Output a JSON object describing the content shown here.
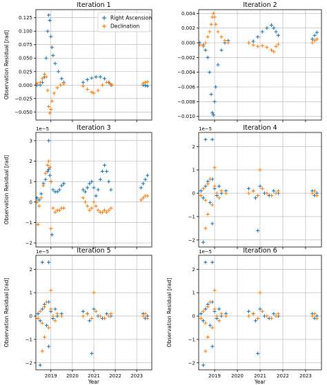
{
  "figure": {
    "colors": {
      "ra": "#1f77b4",
      "dec": "#ff7f0e",
      "grid": "#b0b0b0"
    },
    "legend": {
      "entries": [
        "Right Ascension",
        "Declination"
      ],
      "placement": "upper-right of panel 1"
    }
  },
  "chart_data": [
    {
      "type": "scatter",
      "title": "Iteration 1",
      "xlabel": "",
      "ylabel": "Observation Residual [rad]",
      "offset_text": "",
      "xlim": [
        2018.3,
        2023.7
      ],
      "ylim": [
        -0.065,
        0.14
      ],
      "yticks": [
        -0.05,
        -0.025,
        0.0,
        0.025,
        0.05,
        0.075,
        0.1,
        0.125
      ],
      "ytick_labels": [
        "−0.050",
        "−0.025",
        "0.000",
        "0.025",
        "0.050",
        "0.075",
        "0.100",
        "0.125"
      ],
      "xticks": [
        2019,
        2020,
        2021,
        2022,
        2023
      ],
      "xtick_labels": [],
      "grid": true,
      "series": [
        {
          "name": "Right Ascension",
          "x": [
            2018.35,
            2018.5,
            2018.6,
            2018.7,
            2018.78,
            2018.85,
            2018.9,
            2018.95,
            2019.0,
            2019.05,
            2019.1,
            2019.2,
            2019.35,
            2019.5,
            2019.6,
            2020.5,
            2020.7,
            2020.9,
            2021.1,
            2021.3,
            2021.5,
            2021.7,
            2021.8,
            2023.3,
            2023.4,
            2023.5
          ],
          "y": [
            0.0,
            0.0,
            0.005,
            0.015,
            0.05,
            0.1,
            0.13,
            0.12,
            0.09,
            0.07,
            0.055,
            0.04,
            0.025,
            0.012,
            0.005,
            0.005,
            0.01,
            0.013,
            0.015,
            0.015,
            0.012,
            0.005,
            0.0,
            0.0,
            -0.001,
            -0.002
          ]
        },
        {
          "name": "Declination",
          "x": [
            2018.35,
            2018.5,
            2018.6,
            2018.7,
            2018.78,
            2018.85,
            2018.9,
            2018.95,
            2019.0,
            2019.05,
            2019.15,
            2019.3,
            2019.45,
            2019.6,
            2020.5,
            2020.7,
            2020.9,
            2021.0,
            2021.2,
            2021.4,
            2021.6,
            2021.75,
            2021.85,
            2023.3,
            2023.4,
            2023.5
          ],
          "y": [
            0.003,
            0.005,
            0.012,
            0.02,
            0.015,
            -0.01,
            -0.04,
            -0.052,
            -0.045,
            -0.03,
            -0.015,
            -0.005,
            0.0,
            0.002,
            -0.002,
            -0.008,
            -0.013,
            -0.015,
            -0.01,
            0.0,
            0.005,
            0.003,
            0.0,
            0.003,
            0.005,
            0.006
          ]
        }
      ]
    },
    {
      "type": "scatter",
      "title": "Iteration 2",
      "xlabel": "",
      "ylabel": "",
      "offset_text": "",
      "xlim": [
        2018.3,
        2023.7
      ],
      "ylim": [
        -0.0105,
        0.0045
      ],
      "yticks": [
        -0.01,
        -0.008,
        -0.006,
        -0.004,
        -0.002,
        0.0,
        0.002,
        0.004
      ],
      "ytick_labels": [
        "−0.010",
        "−0.008",
        "−0.006",
        "−0.004",
        "−0.002",
        "0.000",
        "0.002",
        "0.004"
      ],
      "xticks": [
        2019,
        2020,
        2021,
        2022,
        2023
      ],
      "xtick_labels": [],
      "grid": true,
      "series": [
        {
          "name": "Right Ascension",
          "x": [
            2018.35,
            2018.5,
            2018.6,
            2018.7,
            2018.78,
            2018.85,
            2018.9,
            2018.95,
            2019.0,
            2019.05,
            2019.15,
            2019.3,
            2019.45,
            2019.6,
            2020.5,
            2020.7,
            2020.9,
            2021.1,
            2021.3,
            2021.5,
            2021.6,
            2021.7,
            2021.8,
            2023.3,
            2023.4,
            2023.5
          ],
          "y": [
            0.0,
            -0.0003,
            -0.001,
            -0.002,
            -0.004,
            -0.007,
            -0.0095,
            -0.0098,
            -0.008,
            -0.006,
            -0.003,
            -0.001,
            0.0,
            0.0003,
            0.0,
            0.0002,
            0.0008,
            0.0015,
            0.002,
            0.0024,
            0.002,
            0.0015,
            0.001,
            0.0005,
            0.001,
            0.0014
          ]
        },
        {
          "name": "Declination",
          "x": [
            2018.35,
            2018.5,
            2018.6,
            2018.7,
            2018.78,
            2018.85,
            2018.9,
            2018.95,
            2019.0,
            2019.05,
            2019.15,
            2019.3,
            2019.45,
            2019.6,
            2020.5,
            2020.7,
            2020.9,
            2021.1,
            2021.3,
            2021.5,
            2021.6,
            2021.7,
            2021.8,
            2023.3,
            2023.4,
            2023.5
          ],
          "y": [
            -0.0003,
            -0.0005,
            0.0,
            0.0008,
            0.0015,
            0.0025,
            0.0035,
            0.004,
            0.0035,
            0.0025,
            0.0015,
            0.0008,
            0.0003,
            0.0,
            0.0,
            -0.0003,
            -0.0005,
            -0.0004,
            -0.0006,
            -0.001,
            -0.0012,
            -0.0005,
            -0.0002,
            0.0,
            0.0003,
            0.0005
          ]
        }
      ]
    },
    {
      "type": "scatter",
      "title": "Iteration 3",
      "xlabel": "",
      "ylabel": "Observation Residual [rad]",
      "offset_text": "1e−5",
      "xlim": [
        2018.3,
        2023.7
      ],
      "ylim": [
        -2.2,
        3.4
      ],
      "yticks": [
        -2,
        -1,
        0,
        1,
        2,
        3
      ],
      "ytick_labels": [
        "−2",
        "−1",
        "0",
        "1",
        "2",
        "3"
      ],
      "xticks": [
        2019,
        2020,
        2021,
        2022,
        2023
      ],
      "xtick_labels": [],
      "grid": true,
      "series": [
        {
          "name": "Right Ascension",
          "x": [
            2018.35,
            2018.45,
            2018.55,
            2018.65,
            2018.75,
            2018.85,
            2018.9,
            2018.95,
            2019.0,
            2019.1,
            2019.2,
            2019.3,
            2019.4,
            2019.5,
            2019.6,
            2020.5,
            2020.6,
            2020.7,
            2020.8,
            2020.9,
            2021.0,
            2021.1,
            2021.2,
            2021.3,
            2021.4,
            2021.5,
            2021.6,
            2021.7,
            2021.8,
            2018.9,
            2019.05,
            2023.2,
            2023.3,
            2023.4,
            2023.5
          ],
          "y": [
            0.2,
            0.1,
            0.4,
            0.9,
            1.1,
            1.5,
            1.6,
            1.3,
            1.0,
            0.6,
            0.5,
            0.5,
            0.6,
            0.8,
            0.9,
            0.6,
            0.5,
            0.7,
            0.9,
            1.0,
            0.7,
            0.3,
            0.6,
            1.1,
            1.5,
            1.8,
            1.5,
            1.0,
            0.6,
            3.0,
            -1.6,
            0.7,
            0.9,
            1.1,
            1.3
          ]
        },
        {
          "name": "Declination",
          "x": [
            2018.35,
            2018.45,
            2018.55,
            2018.65,
            2018.75,
            2018.85,
            2018.9,
            2018.95,
            2019.0,
            2019.1,
            2019.2,
            2019.3,
            2019.4,
            2019.5,
            2019.6,
            2020.5,
            2020.6,
            2020.7,
            2020.8,
            2020.9,
            2021.0,
            2021.1,
            2021.2,
            2021.3,
            2021.4,
            2021.5,
            2021.6,
            2021.7,
            2021.8,
            2018.4,
            2019.0,
            2023.2,
            2023.3,
            2023.4,
            2023.5
          ],
          "y": [
            0.0,
            -0.2,
            0.2,
            0.8,
            1.4,
            1.8,
            2.0,
            1.7,
            1.0,
            -0.3,
            -0.5,
            -0.4,
            -0.4,
            -0.3,
            -0.3,
            0.2,
            0.0,
            -0.2,
            -0.4,
            -0.3,
            0.0,
            -0.2,
            -0.4,
            -0.5,
            -0.5,
            -0.4,
            -0.5,
            -0.4,
            -0.3,
            -1.1,
            -1.3,
            0.1,
            0.2,
            0.3,
            0.3
          ]
        }
      ]
    },
    {
      "type": "scatter",
      "title": "Iteration 4",
      "xlabel": "",
      "ylabel": "",
      "offset_text": "1e−5",
      "xlim": [
        2018.3,
        2023.7
      ],
      "ylim": [
        -2.3,
        2.6
      ],
      "yticks": [
        -2,
        -1,
        0,
        1,
        2
      ],
      "ytick_labels": [
        "−2",
        "−1",
        "0",
        "1",
        "2"
      ],
      "xticks": [
        2019,
        2020,
        2021,
        2022,
        2023
      ],
      "xtick_labels": [],
      "grid": true,
      "series": [
        {
          "name": "Right Ascension",
          "x": [
            2018.4,
            2018.5,
            2018.6,
            2018.7,
            2018.8,
            2018.9,
            2019.0,
            2019.1,
            2019.2,
            2019.3,
            2019.5,
            2018.6,
            2018.9,
            2018.5,
            2018.9,
            2020.5,
            2020.7,
            2020.8,
            2021.0,
            2021.2,
            2021.4,
            2021.6,
            2021.8,
            2020.9,
            2023.3,
            2023.4,
            2023.5
          ],
          "y": [
            0.1,
            -0.2,
            0.3,
            0.5,
            -0.4,
            0.6,
            0.2,
            -0.1,
            0.3,
            0.0,
            0.1,
            2.3,
            2.3,
            -2.1,
            -1.3,
            0.2,
            0.1,
            -0.2,
            0.3,
            0.0,
            -0.1,
            0.1,
            0.0,
            -1.6,
            0.1,
            -0.1,
            0.0
          ]
        },
        {
          "name": "Declination",
          "x": [
            2018.4,
            2018.5,
            2018.6,
            2018.7,
            2018.8,
            2018.9,
            2019.0,
            2019.1,
            2019.2,
            2019.3,
            2019.5,
            2018.6,
            2019.0,
            2018.7,
            2020.5,
            2020.7,
            2020.9,
            2021.1,
            2021.3,
            2021.5,
            2021.7,
            2021.8,
            2021.0,
            2023.3,
            2023.4,
            2023.5
          ],
          "y": [
            -0.1,
            0.2,
            -0.3,
            0.4,
            0.6,
            -0.5,
            0.3,
            0.0,
            -0.2,
            0.1,
            0.0,
            -1.5,
            1.1,
            -0.9,
            0.0,
            0.1,
            -0.1,
            0.2,
            0.0,
            -0.1,
            0.0,
            0.1,
            1.0,
            0.0,
            0.1,
            -0.1
          ]
        }
      ]
    },
    {
      "type": "scatter",
      "title": "Iteration 5",
      "xlabel": "Year",
      "ylabel": "Observation Residual [rad]",
      "offset_text": "1e−5",
      "xlim": [
        2018.3,
        2023.7
      ],
      "ylim": [
        -2.3,
        2.6
      ],
      "yticks": [
        -2,
        -1,
        0,
        1,
        2
      ],
      "ytick_labels": [
        "−2",
        "−1",
        "0",
        "1",
        "2"
      ],
      "xticks": [
        2019,
        2020,
        2021,
        2022,
        2023
      ],
      "xtick_labels": [
        "2019",
        "2020",
        "2021",
        "2022",
        "2023"
      ],
      "grid": true,
      "series": [
        {
          "name": "Right Ascension",
          "x": [
            2018.4,
            2018.5,
            2018.6,
            2018.7,
            2018.8,
            2018.9,
            2019.0,
            2019.1,
            2019.2,
            2019.3,
            2019.5,
            2018.6,
            2018.9,
            2018.5,
            2018.9,
            2020.5,
            2020.7,
            2020.8,
            2021.0,
            2021.2,
            2021.4,
            2021.6,
            2021.8,
            2020.9,
            2023.3,
            2023.4,
            2023.5
          ],
          "y": [
            0.1,
            -0.2,
            0.3,
            0.5,
            -0.4,
            0.6,
            0.2,
            -0.1,
            0.3,
            0.0,
            0.1,
            2.3,
            2.3,
            -2.1,
            -1.3,
            0.2,
            0.1,
            -0.2,
            0.3,
            0.0,
            -0.1,
            0.1,
            0.0,
            -1.6,
            0.1,
            -0.1,
            0.0
          ]
        },
        {
          "name": "Declination",
          "x": [
            2018.4,
            2018.5,
            2018.6,
            2018.7,
            2018.8,
            2018.9,
            2019.0,
            2019.1,
            2019.2,
            2019.3,
            2019.5,
            2018.6,
            2019.0,
            2018.7,
            2020.5,
            2020.7,
            2020.9,
            2021.1,
            2021.3,
            2021.5,
            2021.7,
            2021.8,
            2021.0,
            2023.3,
            2023.4,
            2023.5
          ],
          "y": [
            -0.1,
            0.2,
            -0.3,
            0.4,
            0.6,
            -0.5,
            0.3,
            0.0,
            -0.2,
            0.1,
            0.0,
            -1.5,
            1.1,
            -0.9,
            0.0,
            0.1,
            -0.1,
            0.2,
            0.0,
            -0.1,
            0.0,
            0.1,
            1.0,
            0.0,
            0.1,
            -0.1
          ]
        }
      ]
    },
    {
      "type": "scatter",
      "title": "Iteration 6",
      "xlabel": "Year",
      "ylabel": "Observation Residual [rad]",
      "offset_text": "1e−5",
      "xlim": [
        2018.3,
        2023.7
      ],
      "ylim": [
        -2.3,
        2.6
      ],
      "yticks": [
        -2,
        -1,
        0,
        1,
        2
      ],
      "ytick_labels": [
        "−2",
        "−1",
        "0",
        "1",
        "2"
      ],
      "xticks": [
        2019,
        2020,
        2021,
        2022,
        2023
      ],
      "xtick_labels": [
        "2019",
        "2020",
        "2021",
        "2022",
        "2023"
      ],
      "grid": true,
      "series": [
        {
          "name": "Right Ascension",
          "x": [
            2018.4,
            2018.5,
            2018.6,
            2018.7,
            2018.8,
            2018.9,
            2019.0,
            2019.1,
            2019.2,
            2019.3,
            2019.5,
            2018.6,
            2018.9,
            2018.5,
            2018.9,
            2020.5,
            2020.7,
            2020.8,
            2021.0,
            2021.2,
            2021.4,
            2021.6,
            2021.8,
            2020.9,
            2023.3,
            2023.4,
            2023.5
          ],
          "y": [
            0.1,
            -0.2,
            0.3,
            0.5,
            -0.4,
            0.6,
            0.2,
            -0.1,
            0.3,
            0.0,
            0.1,
            2.3,
            2.3,
            -2.1,
            -1.3,
            0.2,
            0.1,
            -0.2,
            0.3,
            0.0,
            -0.1,
            0.1,
            0.0,
            -1.6,
            0.1,
            -0.1,
            0.0
          ]
        },
        {
          "name": "Declination",
          "x": [
            2018.4,
            2018.5,
            2018.6,
            2018.7,
            2018.8,
            2018.9,
            2019.0,
            2019.1,
            2019.2,
            2019.3,
            2019.5,
            2018.6,
            2019.0,
            2018.7,
            2020.5,
            2020.7,
            2020.9,
            2021.1,
            2021.3,
            2021.5,
            2021.7,
            2021.8,
            2021.0,
            2023.3,
            2023.4,
            2023.5
          ],
          "y": [
            -0.1,
            0.2,
            -0.3,
            0.4,
            0.6,
            -0.5,
            0.3,
            0.0,
            -0.2,
            0.1,
            0.0,
            -1.5,
            1.1,
            -0.9,
            0.0,
            0.1,
            -0.1,
            0.2,
            0.0,
            -0.1,
            0.0,
            0.1,
            1.0,
            0.0,
            0.1,
            -0.1
          ]
        }
      ]
    }
  ]
}
